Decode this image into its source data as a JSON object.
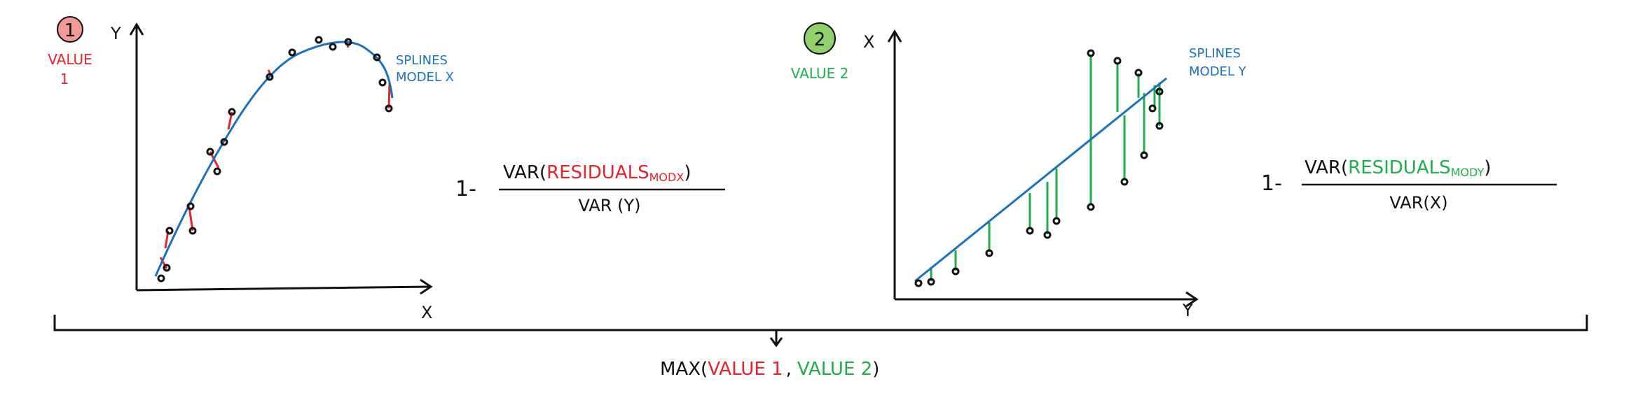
{
  "panel1": {
    "badge": "1",
    "value_label": "VALUE",
    "value_number": "1",
    "y_axis": "Y",
    "x_axis": "X",
    "model_line1": "SPLINES",
    "model_line2": "MODEL X",
    "formula_prefix": "1-",
    "formula_var": "VAR(",
    "formula_residuals": "RESIDUALS",
    "formula_sub": "MODX",
    "formula_close": ")",
    "formula_denominator": "VAR (Y)"
  },
  "panel2": {
    "badge": "2",
    "value_label": "VALUE 2",
    "y_axis": "X",
    "x_axis": "Y",
    "model_line1": "SPLINES",
    "model_line2": "MODEL Y",
    "formula_prefix": "1-",
    "formula_var": "VAR(",
    "formula_residuals": "RESIDUALS",
    "formula_sub": "MODY",
    "formula_close": ")",
    "formula_denominator": "VAR(X)"
  },
  "bottom": {
    "max_open": "MAX(",
    "value1": "VALUE 1",
    "comma": ",",
    "value2": "VALUE 2",
    "max_close": ")"
  },
  "colors": {
    "ink": "#111111",
    "red": "#e8232c",
    "green": "#1fae4b",
    "blue": "#1a72bd",
    "badge1_fill": "#f29a96",
    "badge2_fill": "#8fd16a"
  }
}
